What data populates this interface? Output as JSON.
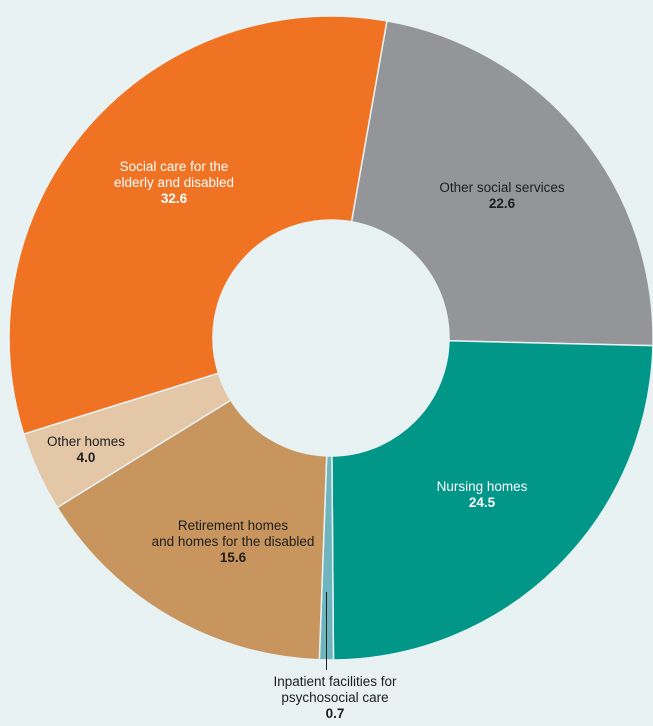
{
  "chart_data": {
    "type": "pie",
    "variant": "donut",
    "title": "",
    "slices": [
      {
        "label_lines": [
          "Other social services"
        ],
        "value": 22.6,
        "value_label": "22.6",
        "color": "#939598",
        "text_color": "#1e1e1e"
      },
      {
        "label_lines": [
          "Nursing homes"
        ],
        "value": 24.5,
        "value_label": "24.5",
        "color": "#009688",
        "text_color": "#ffffff"
      },
      {
        "label_lines": [
          "Inpatient facilities for",
          "psychosocial care"
        ],
        "value": 0.7,
        "value_label": "0.7",
        "color": "#6fb5bd",
        "text_color": "#1e1e1e"
      },
      {
        "label_lines": [
          "Retirement homes",
          "and homes for the disabled"
        ],
        "value": 15.6,
        "value_label": "15.6",
        "color": "#c8955f",
        "text_color": "#1e1e1e"
      },
      {
        "label_lines": [
          "Other homes"
        ],
        "value": 4.0,
        "value_label": "4.0",
        "color": "#e3c7a6",
        "text_color": "#1e1e1e"
      },
      {
        "label_lines": [
          "Social care for the",
          "elderly and disabled"
        ],
        "value": 32.6,
        "value_label": "32.6",
        "color": "#f07223",
        "text_color": "#ffffff"
      }
    ],
    "legend": "none",
    "labels": "on-slices"
  }
}
